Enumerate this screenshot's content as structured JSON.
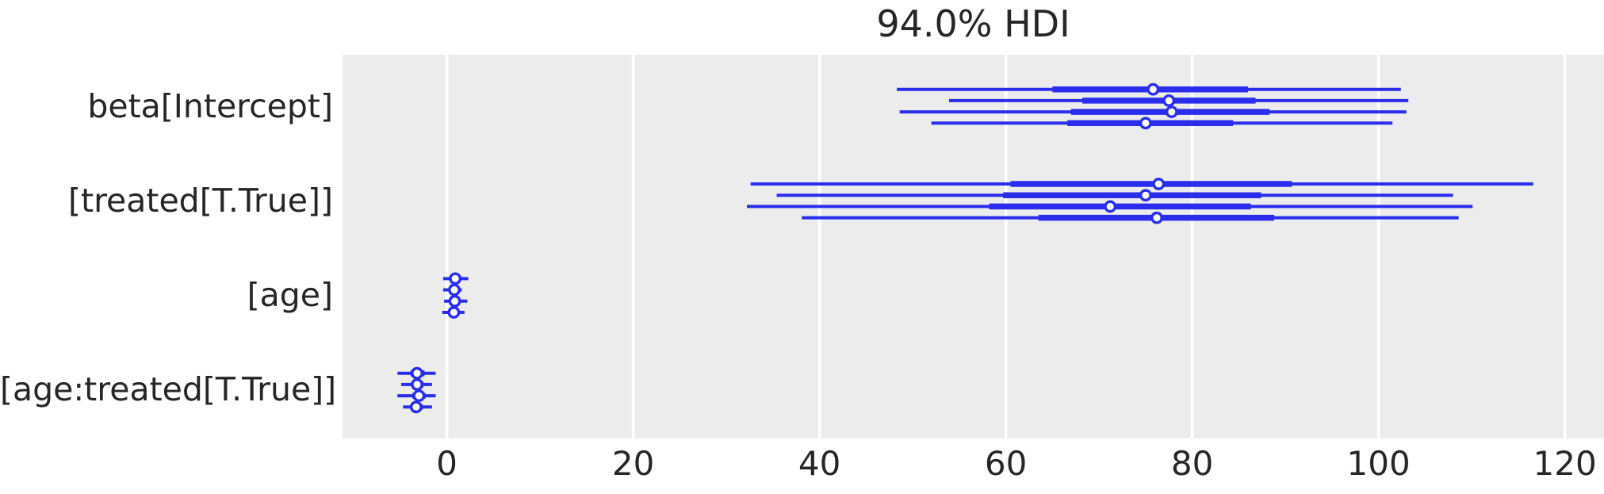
{
  "title": "94.0% HDI",
  "colors": {
    "line": "#2a2eec",
    "panel_background": "#ececec",
    "grid_line": "#ffffff",
    "text": "#262626",
    "marker_fill": "#ffffff",
    "figure_background": "#ffffff"
  },
  "chart_data": {
    "type": "forest",
    "title": "94.0% HDI",
    "xlabel": "",
    "ylabel": "",
    "xlim": [
      -11.2,
      124.2
    ],
    "xticks": [
      0,
      20,
      40,
      60,
      80,
      100,
      120
    ],
    "grid": "vertical white gridlines on gray panel, no axis spines, no tick marks",
    "legend": "none",
    "marker": "open circle (median), thick bar (interquartile), thin line (94% HDI)",
    "chains_per_parameter": 4,
    "parameters": [
      {
        "label": "beta[Intercept]",
        "chains": [
          {
            "hdi": [
              48.3,
              102.4
            ],
            "iqr": [
              65.0,
              86.0
            ],
            "median": 75.8
          },
          {
            "hdi": [
              53.9,
              103.2
            ],
            "iqr": [
              68.2,
              86.8
            ],
            "median": 77.5
          },
          {
            "hdi": [
              48.6,
              103.0
            ],
            "iqr": [
              67.0,
              88.3
            ],
            "median": 77.8
          },
          {
            "hdi": [
              52.0,
              101.5
            ],
            "iqr": [
              66.6,
              84.4
            ],
            "median": 75.0
          }
        ]
      },
      {
        "label": "[treated[T.True]]",
        "chains": [
          {
            "hdi": [
              32.6,
              116.6
            ],
            "iqr": [
              60.5,
              90.7
            ],
            "median": 76.4
          },
          {
            "hdi": [
              35.4,
              108.0
            ],
            "iqr": [
              59.7,
              87.4
            ],
            "median": 75.0
          },
          {
            "hdi": [
              32.2,
              110.1
            ],
            "iqr": [
              58.2,
              86.3
            ],
            "median": 71.2
          },
          {
            "hdi": [
              38.1,
              108.6
            ],
            "iqr": [
              63.5,
              88.8
            ],
            "median": 76.2
          }
        ]
      },
      {
        "label": "[age]",
        "chains": [
          {
            "hdi": [
              -0.4,
              2.3
            ],
            "iqr": [
              0.3,
              1.5
            ],
            "median": 0.9
          },
          {
            "hdi": [
              -0.4,
              1.6
            ],
            "iqr": [
              0.2,
              1.4
            ],
            "median": 0.8
          },
          {
            "hdi": [
              -0.3,
              2.2
            ],
            "iqr": [
              0.3,
              1.4
            ],
            "median": 0.85
          },
          {
            "hdi": [
              -0.5,
              1.9
            ],
            "iqr": [
              0.2,
              1.3
            ],
            "median": 0.75
          }
        ]
      },
      {
        "label": "[age:treated[T.True]]",
        "chains": [
          {
            "hdi": [
              -5.3,
              -1.2
            ],
            "iqr": [
              -3.9,
              -2.4
            ],
            "median": -3.2
          },
          {
            "hdi": [
              -4.9,
              -1.6
            ],
            "iqr": [
              -3.8,
              -2.5
            ],
            "median": -3.2
          },
          {
            "hdi": [
              -5.3,
              -1.2
            ],
            "iqr": [
              -3.7,
              -2.3
            ],
            "median": -3.0
          },
          {
            "hdi": [
              -4.7,
              -1.6
            ],
            "iqr": [
              -3.9,
              -2.6
            ],
            "median": -3.3
          }
        ]
      }
    ]
  }
}
